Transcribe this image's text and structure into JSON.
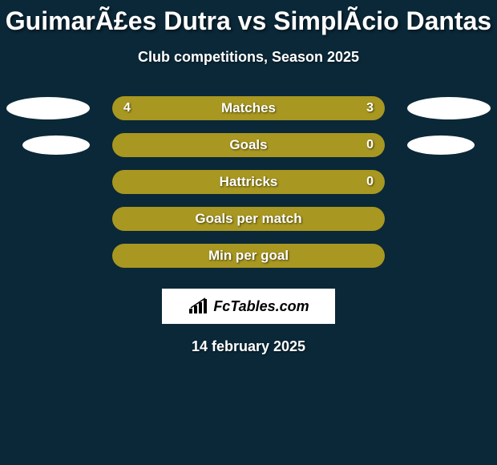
{
  "title": "GuimarÃ£es Dutra vs SimplÃ­cio Dantas",
  "subtitle": "Club competitions, Season 2025",
  "date": "14 february 2025",
  "logo_text": "FcTables.com",
  "colors": {
    "background": "#0a2838",
    "bar_fill": "#a89720",
    "ellipse": "#ffffff"
  },
  "stats": [
    {
      "label": "Matches",
      "left_value": "4",
      "right_value": "3",
      "left_ellipse": true,
      "right_ellipse": true,
      "left_ellipse_size": "large",
      "right_ellipse_size": "large"
    },
    {
      "label": "Goals",
      "left_value": "",
      "right_value": "0",
      "left_ellipse": true,
      "right_ellipse": true,
      "left_ellipse_size": "small",
      "right_ellipse_size": "small"
    },
    {
      "label": "Hattricks",
      "left_value": "",
      "right_value": "0",
      "left_ellipse": false,
      "right_ellipse": false
    },
    {
      "label": "Goals per match",
      "left_value": "",
      "right_value": "",
      "left_ellipse": false,
      "right_ellipse": false
    },
    {
      "label": "Min per goal",
      "left_value": "",
      "right_value": "",
      "left_ellipse": false,
      "right_ellipse": false
    }
  ]
}
